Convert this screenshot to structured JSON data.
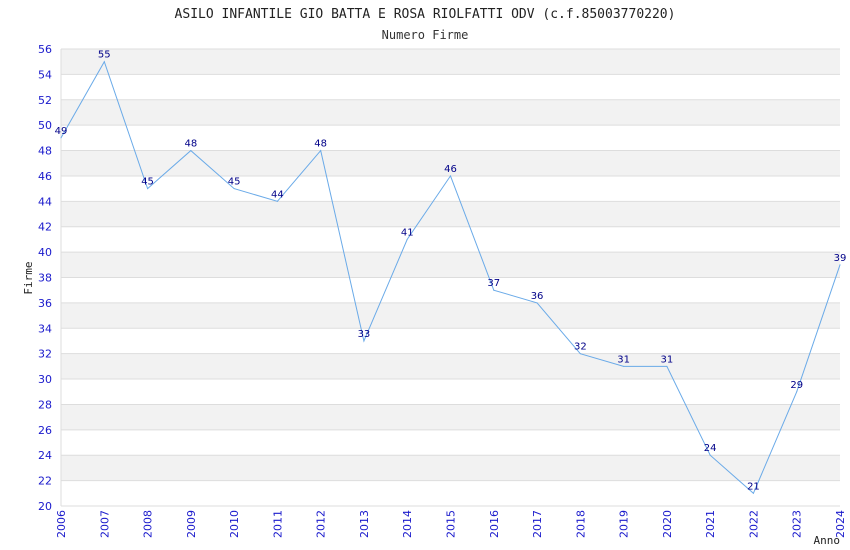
{
  "chart_data": {
    "type": "line",
    "title": "ASILO INFANTILE GIO BATTA E ROSA RIOLFATTI ODV (c.f.85003770220)",
    "subtitle": "Numero Firme",
    "xlabel": "Anno",
    "ylabel": "Firme",
    "ylim": [
      20,
      56
    ],
    "ytick_step": 2,
    "grid": true,
    "x": [
      "2006",
      "2007",
      "2008",
      "2009",
      "2010",
      "2011",
      "2012",
      "2013",
      "2014",
      "2015",
      "2016",
      "2017",
      "2018",
      "2019",
      "2020",
      "2021",
      "2022",
      "2023",
      "2024"
    ],
    "values": [
      49,
      55,
      45,
      48,
      45,
      44,
      48,
      33,
      41,
      46,
      37,
      36,
      32,
      31,
      31,
      24,
      21,
      29,
      39
    ],
    "colors": {
      "line": "#6aaae8",
      "band": "#f2f2f2",
      "grid": "#dddddd",
      "tick": "#1a1acc",
      "label": "#000088"
    }
  }
}
